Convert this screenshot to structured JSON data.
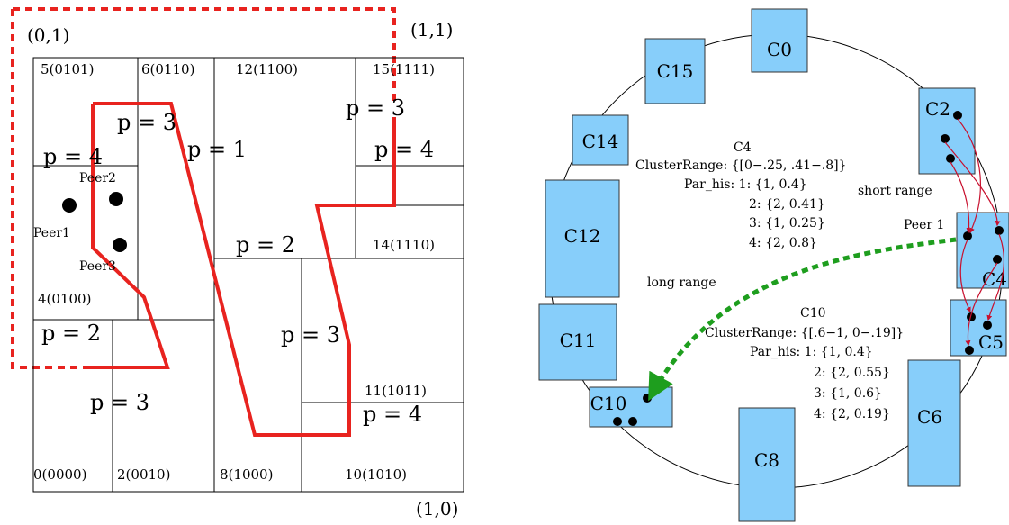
{
  "grid": {
    "corner_labels": {
      "top_left": "(0,1)",
      "top_right": "(1,1)",
      "bottom_right": "(1,0)"
    },
    "cell_labels": {
      "c5": "5(0101)",
      "c6": "6(0110)",
      "c12": "12(1100)",
      "c15": "15(1111)",
      "c4": "4(0100)",
      "c14": "14(1110)",
      "c11": "11(1011)",
      "c0": "0(0000)",
      "c2": "2(0010)",
      "c8": "8(1000)",
      "c10": "10(1010)"
    },
    "p_labels": [
      "p = 4",
      "p = 3",
      "p = 1",
      "p = 3",
      "p = 4",
      "p = 2",
      "p = 2",
      "p = 3",
      "p = 3",
      "p = 4"
    ],
    "peers": [
      "Peer1",
      "Peer2",
      "Peer3"
    ],
    "colors": {
      "region_outline": "#e8231f",
      "dashed_boundary": "#e8231f"
    }
  },
  "ring": {
    "clusters": [
      "C0",
      "C15",
      "C2",
      "C14",
      "C12",
      "C4",
      "C11",
      "C5",
      "C10",
      "C6",
      "C8"
    ],
    "c4_info": {
      "title": "C4",
      "range": "ClusterRange: {[0−.25, .41−.8]}",
      "his_lines": [
        "Par_his: 1: {1, 0.4}",
        "2: {2, 0.41}",
        "3: {1, 0.25}",
        "4: {2, 0.8}"
      ]
    },
    "c10_info": {
      "title": "C10",
      "range": "ClusterRange: {[.6−1, 0−.19]}",
      "his_lines": [
        "Par_his: 1: {1, 0.4}",
        "2: {2, 0.55}",
        "3: {1, 0.6}",
        "4: {2, 0.19}"
      ]
    },
    "short_range_label": "short range",
    "long_range_label": "long range",
    "peer1_label": "Peer 1",
    "colors": {
      "cluster_fill": "#87cefa",
      "short_arrows": "#c8102e",
      "long_arrow": "#1e9e1e"
    }
  }
}
